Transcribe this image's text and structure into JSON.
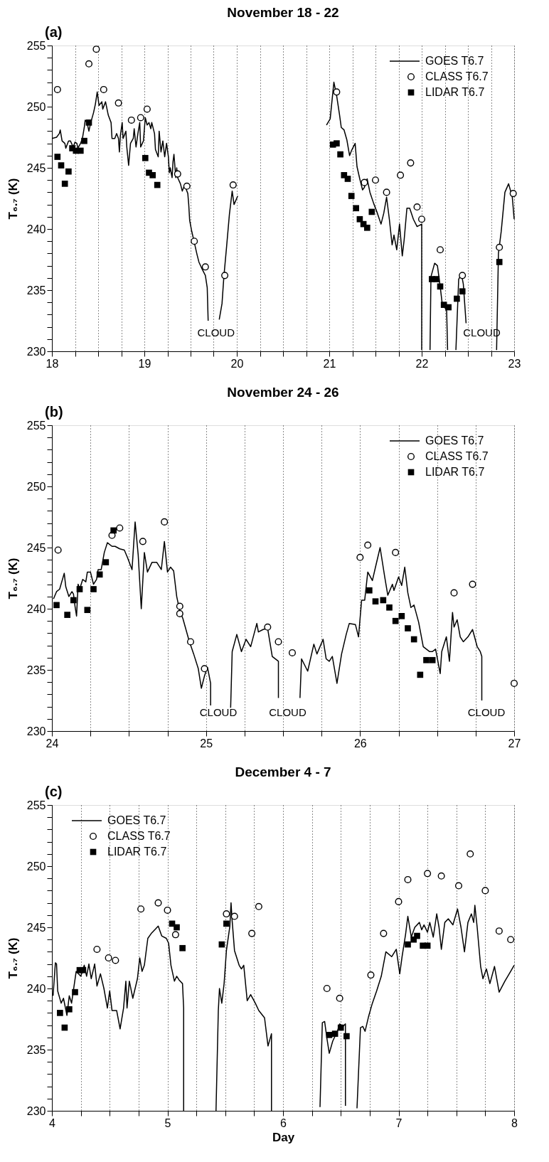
{
  "chart_data": [
    {
      "type": "line",
      "title": "November 18 - 22",
      "ylabel": "T₆.₇ (K)",
      "annotations": [
        "(a)",
        "CLOUD",
        "CLOUD"
      ],
      "xlim": [
        18,
        23
      ],
      "ylim": [
        230,
        255
      ],
      "xticks": [
        18,
        {
          "value": 18.25,
          "label": null
        },
        {
          "value": 18.5,
          "label": null
        },
        {
          "value": 18.75,
          "label": null
        },
        19,
        {
          "value": 19.25,
          "label": null
        },
        {
          "value": 19.5,
          "label": null
        },
        {
          "value": 19.75,
          "label": null
        },
        20,
        {
          "value": 20.25,
          "label": null
        },
        {
          "value": 20.5,
          "label": null
        },
        {
          "value": 20.75,
          "label": null
        },
        21,
        {
          "value": 21.25,
          "label": null
        },
        {
          "value": 21.5,
          "label": null
        },
        {
          "value": 21.75,
          "label": null
        },
        22,
        {
          "value": 22.25,
          "label": null
        },
        {
          "value": 22.5,
          "label": null
        },
        {
          "value": 22.75,
          "label": null
        },
        23
      ],
      "yticks": [
        230,
        {
          "value": 231,
          "label": null
        },
        {
          "value": 232,
          "label": null
        },
        {
          "value": 233,
          "label": null
        },
        {
          "value": 234,
          "label": null
        },
        235,
        {
          "value": 236,
          "label": null
        },
        {
          "value": 237,
          "label": null
        },
        {
          "value": 238,
          "label": null
        },
        {
          "value": 239,
          "label": null
        },
        240,
        {
          "value": 241,
          "label": null
        },
        {
          "value": 242,
          "label": null
        },
        {
          "value": 243,
          "label": null
        },
        {
          "value": 244,
          "label": null
        },
        245,
        {
          "value": 246,
          "label": null
        },
        {
          "value": 247,
          "label": null
        },
        {
          "value": 248,
          "label": null
        },
        {
          "value": 249,
          "label": null
        },
        250,
        {
          "value": 251,
          "label": null
        },
        {
          "value": 252,
          "label": null
        },
        {
          "value": 253,
          "label": null
        },
        {
          "value": 254,
          "label": null
        },
        255
      ],
      "grid": "x",
      "legend": "top right",
      "series": [
        {
          "name": "GOES T6.7",
          "line_style": "solid",
          "color": "#000000",
          "x": [
            18.0,
            18.05,
            18.08,
            18.09,
            18.11,
            18.14,
            18.15,
            18.18,
            18.2,
            18.23,
            18.25,
            18.27,
            18.28,
            18.31,
            18.33,
            18.35,
            18.36,
            18.38,
            18.4,
            18.42,
            18.45,
            18.47,
            18.49,
            18.51,
            18.54,
            18.55,
            18.58,
            18.61,
            18.64,
            18.65,
            18.68,
            18.7,
            18.72,
            18.73,
            18.74,
            18.76,
            18.77,
            18.8,
            18.81,
            18.83,
            18.85,
            18.88,
            18.89,
            18.91,
            18.93,
            18.95,
            18.96,
            18.99,
            19.01,
            19.03,
            19.05,
            19.07,
            19.08,
            19.11,
            19.12,
            19.15,
            19.16,
            19.18,
            19.2,
            19.22,
            19.24,
            19.26,
            19.27,
            19.28,
            19.3,
            19.31,
            19.32,
            19.34,
            19.35,
            19.36,
            19.39,
            19.41,
            19.43,
            19.45,
            19.47,
            19.48,
            19.49,
            19.51,
            19.54,
            19.57,
            19.59,
            19.62,
            19.66,
            19.68,
            19.69,
            19.75,
            19.81,
            19.84,
            19.86,
            19.89,
            19.92,
            19.95,
            19.97,
            20.01,
            20.5,
            20.97,
            21.01,
            21.05,
            21.08,
            21.11,
            21.13,
            21.16,
            21.19,
            21.22,
            21.24,
            21.28,
            21.3,
            21.33,
            21.36,
            21.38,
            21.41,
            21.44,
            21.48,
            21.52,
            21.56,
            21.59,
            21.62,
            21.65,
            21.68,
            21.7,
            21.73,
            21.76,
            21.79,
            21.81,
            21.84,
            21.87,
            21.91,
            21.95,
            22.0,
            22.0,
            22.05,
            22.09,
            22.1,
            22.14,
            22.17,
            22.2,
            22.22,
            22.27,
            22.28,
            22.32,
            22.37,
            22.4,
            22.43,
            22.45,
            22.48,
            22.6,
            22.81,
            22.83,
            22.86,
            22.9,
            22.94,
            22.98,
            23.0
          ],
          "values": [
            247.4,
            247.5,
            247.8,
            248.1,
            247.2,
            247.0,
            246.6,
            247.2,
            247.2,
            246.7,
            247.1,
            247.0,
            246.6,
            247.0,
            247.4,
            248.3,
            248.9,
            248.7,
            248.0,
            248.7,
            249.5,
            250.2,
            251.2,
            250.1,
            250.4,
            249.8,
            250.4,
            249.3,
            248.7,
            247.4,
            247.4,
            247.8,
            247.4,
            246.3,
            247.6,
            248.7,
            247.4,
            248.0,
            246.7,
            245.2,
            247.0,
            247.4,
            248.2,
            246.7,
            247.8,
            248.7,
            246.7,
            247.2,
            249.1,
            248.5,
            248.7,
            248.2,
            248.7,
            247.8,
            246.5,
            245.9,
            248.0,
            246.3,
            247.2,
            245.9,
            247.0,
            245.9,
            244.6,
            245.0,
            244.2,
            245.5,
            246.1,
            244.2,
            245.0,
            244.2,
            243.7,
            243.1,
            243.5,
            243.3,
            242.9,
            242.0,
            240.7,
            239.9,
            238.9,
            237.9,
            237.3,
            236.8,
            236.2,
            235.2,
            232.5,
            null,
            232.6,
            233.9,
            236.1,
            238.6,
            241.2,
            243.1,
            242.0,
            242.7,
            null,
            248.5,
            249.0,
            252.0,
            250.9,
            249.4,
            248.3,
            248.1,
            247.3,
            246.0,
            246.4,
            247.0,
            245.1,
            244.1,
            243.2,
            243.4,
            244.1,
            243.0,
            242.1,
            241.3,
            240.4,
            241.3,
            242.6,
            240.8,
            238.7,
            239.5,
            238.3,
            240.4,
            237.8,
            239.1,
            241.7,
            241.7,
            240.8,
            240.2,
            240.4,
            230.1,
            null,
            230.1,
            236.1,
            237.2,
            237.0,
            235.3,
            234.0,
            233.3,
            230.1,
            null,
            230.1,
            235.9,
            236.3,
            235.5,
            232.3,
            null,
            230.1,
            238.0,
            239.8,
            243.0,
            243.7,
            242.6,
            240.8
          ]
        },
        {
          "name": "CLASS T6.7",
          "type": "scatter",
          "marker": "circle",
          "color": "#000000",
          "x": [
            18.06,
            18.4,
            18.48,
            18.56,
            18.72,
            18.86,
            18.96,
            19.03,
            19.36,
            19.46,
            19.54,
            19.66,
            19.87,
            19.96,
            21.08,
            21.38,
            21.5,
            21.62,
            21.77,
            21.88,
            21.95,
            22.0,
            22.2,
            22.44,
            22.84,
            22.99
          ],
          "values": [
            251.4,
            253.5,
            254.7,
            251.4,
            250.3,
            248.9,
            249.1,
            249.8,
            244.5,
            243.5,
            239.0,
            236.9,
            236.2,
            243.6,
            251.2,
            243.8,
            244.0,
            243.0,
            244.4,
            245.4,
            241.8,
            240.8,
            238.3,
            236.2,
            238.5,
            242.9
          ]
        },
        {
          "name": "LIDAR T6.7",
          "type": "scatter",
          "marker": "square",
          "color": "#000000",
          "x": [
            18.06,
            18.1,
            18.14,
            18.18,
            18.22,
            18.26,
            18.31,
            18.35,
            18.4,
            19.01,
            19.05,
            19.09,
            19.14,
            21.04,
            21.08,
            21.12,
            21.16,
            21.2,
            21.24,
            21.29,
            21.33,
            21.37,
            21.41,
            21.46,
            22.11,
            22.16,
            22.2,
            22.24,
            22.29,
            22.38,
            22.44,
            22.84
          ],
          "values": [
            245.9,
            245.2,
            243.7,
            244.7,
            246.6,
            246.4,
            246.4,
            247.2,
            248.7,
            245.8,
            244.6,
            244.4,
            243.6,
            246.9,
            247.0,
            246.1,
            244.4,
            244.1,
            242.7,
            241.7,
            240.8,
            240.4,
            240.1,
            241.4,
            235.9,
            235.9,
            235.3,
            233.8,
            233.6,
            234.3,
            234.9,
            237.3
          ]
        }
      ]
    },
    {
      "type": "line",
      "title": "November 24 - 26",
      "ylabel": "T₆.₇ (K)",
      "annotations": [
        "(b)",
        "CLOUD",
        "CLOUD",
        "CLOUD"
      ],
      "xlim": [
        24,
        27
      ],
      "ylim": [
        230,
        255
      ],
      "xticks": [
        24,
        {
          "value": 24.25,
          "label": null
        },
        {
          "value": 24.5,
          "label": null
        },
        {
          "value": 24.75,
          "label": null
        },
        25,
        {
          "value": 25.25,
          "label": null
        },
        {
          "value": 25.5,
          "label": null
        },
        {
          "value": 25.75,
          "label": null
        },
        26,
        {
          "value": 26.25,
          "label": null
        },
        {
          "value": 26.5,
          "label": null
        },
        {
          "value": 26.75,
          "label": null
        },
        27
      ],
      "yticks": [
        230,
        {
          "value": 231,
          "label": null
        },
        {
          "value": 232,
          "label": null
        },
        {
          "value": 233,
          "label": null
        },
        {
          "value": 234,
          "label": null
        },
        235,
        {
          "value": 236,
          "label": null
        },
        {
          "value": 237,
          "label": null
        },
        {
          "value": 238,
          "label": null
        },
        {
          "value": 239,
          "label": null
        },
        240,
        {
          "value": 241,
          "label": null
        },
        {
          "value": 242,
          "label": null
        },
        {
          "value": 243,
          "label": null
        },
        {
          "value": 244,
          "label": null
        },
        245,
        {
          "value": 246,
          "label": null
        },
        {
          "value": 247,
          "label": null
        },
        {
          "value": 248,
          "label": null
        },
        {
          "value": 249,
          "label": null
        },
        250,
        {
          "value": 251,
          "label": null
        },
        {
          "value": 252,
          "label": null
        },
        {
          "value": 253,
          "label": null
        },
        {
          "value": 254,
          "label": null
        },
        255
      ],
      "grid": "x",
      "legend": "top right",
      "series": [
        {
          "name": "GOES T6.7",
          "line_style": "solid",
          "color": "#000000",
          "x": [
            24.01,
            24.03,
            24.05,
            24.08,
            24.09,
            24.11,
            24.13,
            24.14,
            24.15,
            24.16,
            24.17,
            24.18,
            24.2,
            24.22,
            24.23,
            24.25,
            24.27,
            24.29,
            24.3,
            24.32,
            24.34,
            24.36,
            24.39,
            24.41,
            24.44,
            24.47,
            24.49,
            24.52,
            24.54,
            24.56,
            24.58,
            24.6,
            24.62,
            24.65,
            24.68,
            24.71,
            24.73,
            24.75,
            24.77,
            24.79,
            24.81,
            24.83,
            24.85,
            24.89,
            24.92,
            24.95,
            24.97,
            24.99,
            25.01,
            25.03,
            25.03,
            25.1,
            25.16,
            25.17,
            25.2,
            25.23,
            25.26,
            25.29,
            25.33,
            25.34,
            25.37,
            25.4,
            25.43,
            25.47,
            25.47,
            25.54,
            25.61,
            25.62,
            25.66,
            25.7,
            25.72,
            25.76,
            25.78,
            25.8,
            25.82,
            25.85,
            25.88,
            25.91,
            25.93,
            25.97,
            25.99,
            26.01,
            26.03,
            26.05,
            26.08,
            26.1,
            26.13,
            26.16,
            26.18,
            26.21,
            26.22,
            26.25,
            26.27,
            26.29,
            26.31,
            26.33,
            26.35,
            26.38,
            26.41,
            26.45,
            26.47,
            26.49,
            26.52,
            26.53,
            26.56,
            26.58,
            26.6,
            26.61,
            26.63,
            26.65,
            26.67,
            26.7,
            26.73,
            26.76,
            26.78,
            26.79,
            26.79
          ],
          "values": [
            240.8,
            241.4,
            241.6,
            242.9,
            241.8,
            241.0,
            241.4,
            241.2,
            240.2,
            239.4,
            242.0,
            241.6,
            242.4,
            242.2,
            243.0,
            243.0,
            242.0,
            242.4,
            243.2,
            243.2,
            244.6,
            245.4,
            245.1,
            245.1,
            244.9,
            244.8,
            244.2,
            243.2,
            247.1,
            244.4,
            240.0,
            244.6,
            243.0,
            243.8,
            243.8,
            243.2,
            245.5,
            243.0,
            243.4,
            243.1,
            241.0,
            239.8,
            239.2,
            237.4,
            236.3,
            235.1,
            233.5,
            234.5,
            235.2,
            233.9,
            232.1,
            null,
            231.9,
            236.5,
            237.9,
            236.5,
            237.5,
            236.9,
            238.8,
            238.1,
            238.3,
            238.4,
            236.1,
            235.7,
            232.7,
            null,
            232.7,
            235.9,
            234.9,
            237.1,
            236.3,
            237.5,
            235.9,
            235.7,
            236.1,
            233.9,
            236.3,
            237.9,
            238.8,
            238.7,
            237.7,
            240.7,
            240.7,
            243.0,
            242.3,
            243.4,
            245.0,
            242.6,
            241.1,
            242.0,
            241.5,
            242.6,
            241.9,
            243.4,
            241.3,
            240.1,
            240.3,
            238.9,
            236.9,
            236.5,
            236.5,
            236.7,
            234.7,
            236.5,
            237.7,
            235.7,
            239.7,
            238.5,
            239.1,
            237.7,
            237.3,
            237.7,
            238.3,
            236.9,
            236.5,
            236.1,
            232.5
          ]
        },
        {
          "name": "CLASS T6.7",
          "type": "scatter",
          "marker": "circle",
          "color": "#000000",
          "x": [
            24.04,
            24.39,
            24.44,
            24.59,
            24.73,
            24.83,
            24.83,
            24.9,
            24.99,
            25.4,
            25.47,
            25.56,
            26.0,
            26.05,
            26.23,
            26.61,
            26.73,
            27.0
          ],
          "values": [
            244.8,
            246.0,
            246.6,
            245.5,
            247.1,
            240.2,
            239.6,
            237.3,
            235.1,
            238.5,
            237.3,
            236.4,
            244.2,
            245.2,
            244.6,
            241.3,
            242.0,
            233.9
          ]
        },
        {
          "name": "LIDAR T6.7",
          "type": "scatter",
          "marker": "square",
          "color": "#000000",
          "x": [
            24.03,
            24.1,
            24.14,
            24.18,
            24.23,
            24.27,
            24.31,
            24.35,
            24.4,
            26.06,
            26.1,
            26.15,
            26.19,
            26.23,
            26.27,
            26.31,
            26.35,
            26.39,
            26.43,
            26.47
          ],
          "values": [
            240.3,
            239.5,
            240.7,
            241.6,
            239.9,
            241.6,
            242.8,
            243.8,
            246.4,
            241.5,
            240.6,
            240.7,
            240.1,
            239.0,
            239.4,
            238.4,
            237.5,
            234.6,
            235.8,
            235.8
          ]
        }
      ]
    },
    {
      "type": "line",
      "title": "December 4 - 7",
      "xlabel": "Day",
      "ylabel": "T₆.₇ (K)",
      "annotations": [
        "(c)"
      ],
      "xlim": [
        4,
        8
      ],
      "ylim": [
        230,
        255
      ],
      "xticks": [
        4,
        {
          "value": 4.25,
          "label": null
        },
        {
          "value": 4.5,
          "label": null
        },
        {
          "value": 4.75,
          "label": null
        },
        5,
        {
          "value": 5.25,
          "label": null
        },
        {
          "value": 5.5,
          "label": null
        },
        {
          "value": 5.75,
          "label": null
        },
        6,
        {
          "value": 6.25,
          "label": null
        },
        {
          "value": 6.5,
          "label": null
        },
        {
          "value": 6.75,
          "label": null
        },
        7,
        {
          "value": 7.25,
          "label": null
        },
        {
          "value": 7.5,
          "label": null
        },
        {
          "value": 7.75,
          "label": null
        },
        8
      ],
      "yticks": [
        230,
        {
          "value": 231,
          "label": null
        },
        {
          "value": 232,
          "label": null
        },
        {
          "value": 233,
          "label": null
        },
        {
          "value": 234,
          "label": null
        },
        235,
        {
          "value": 236,
          "label": null
        },
        {
          "value": 237,
          "label": null
        },
        {
          "value": 238,
          "label": null
        },
        {
          "value": 239,
          "label": null
        },
        240,
        {
          "value": 241,
          "label": null
        },
        {
          "value": 242,
          "label": null
        },
        {
          "value": 243,
          "label": null
        },
        {
          "value": 244,
          "label": null
        },
        245,
        {
          "value": 246,
          "label": null
        },
        {
          "value": 247,
          "label": null
        },
        {
          "value": 248,
          "label": null
        },
        {
          "value": 249,
          "label": null
        },
        250,
        {
          "value": 251,
          "label": null
        },
        {
          "value": 252,
          "label": null
        },
        {
          "value": 253,
          "label": null
        },
        {
          "value": 254,
          "label": null
        },
        255
      ],
      "grid": "x",
      "legend": "top left",
      "series": [
        {
          "name": "GOES T6.7",
          "line_style": "solid",
          "color": "#000000",
          "x": [
            4.01,
            4.03,
            4.04,
            4.05,
            4.08,
            4.1,
            4.13,
            4.15,
            4.17,
            4.21,
            4.25,
            4.28,
            4.3,
            4.32,
            4.34,
            4.37,
            4.39,
            4.42,
            4.45,
            4.48,
            4.5,
            4.52,
            4.56,
            4.59,
            4.62,
            4.64,
            4.65,
            4.67,
            4.7,
            4.72,
            4.74,
            4.76,
            4.78,
            4.8,
            4.83,
            4.86,
            4.9,
            4.92,
            4.95,
            4.99,
            5.01,
            5.03,
            5.06,
            5.08,
            5.1,
            5.13,
            5.14,
            5.14,
            5.3,
            5.42,
            5.44,
            5.45,
            5.47,
            5.49,
            5.51,
            5.54,
            5.55,
            5.56,
            5.58,
            5.62,
            5.64,
            5.66,
            5.69,
            5.72,
            5.76,
            5.79,
            5.84,
            5.87,
            5.9,
            5.9,
            6.1,
            6.32,
            6.34,
            6.36,
            6.38,
            6.4,
            6.43,
            6.47,
            6.49,
            6.52,
            6.54,
            6.54,
            6.6,
            6.64,
            6.67,
            6.69,
            6.71,
            6.74,
            6.77,
            6.81,
            6.85,
            6.89,
            6.94,
            6.98,
            7.01,
            7.03,
            7.06,
            7.08,
            7.11,
            7.14,
            7.18,
            7.2,
            7.22,
            7.25,
            7.27,
            7.3,
            7.33,
            7.35,
            7.37,
            7.4,
            7.43,
            7.47,
            7.51,
            7.54,
            7.57,
            7.6,
            7.63,
            7.65,
            7.66,
            7.68,
            7.71,
            7.73,
            7.76,
            7.79,
            7.83,
            7.87,
            7.92,
            7.97,
            8.0
          ],
          "values": [
            239.4,
            242.1,
            242.0,
            239.8,
            238.8,
            239.2,
            237.8,
            239.4,
            238.8,
            241.4,
            241.0,
            241.9,
            241.0,
            242.0,
            240.8,
            242.0,
            240.2,
            241.2,
            240.0,
            238.4,
            239.8,
            238.2,
            238.2,
            236.7,
            238.4,
            240.6,
            238.4,
            240.6,
            239.2,
            240.0,
            240.8,
            242.5,
            241.4,
            241.9,
            244.1,
            244.5,
            244.9,
            245.1,
            244.3,
            244.1,
            243.7,
            241.9,
            240.6,
            241.0,
            240.7,
            240.4,
            238.4,
            230.0,
            null,
            230.0,
            238.2,
            240.0,
            238.8,
            240.4,
            243.1,
            245.1,
            247.0,
            245.5,
            243.1,
            241.9,
            241.6,
            241.9,
            239.0,
            239.5,
            238.8,
            238.2,
            237.6,
            235.3,
            236.3,
            230.0,
            null,
            230.3,
            237.2,
            237.3,
            235.9,
            234.7,
            235.7,
            236.5,
            237.1,
            236.9,
            237.1,
            230.4,
            null,
            230.2,
            236.8,
            236.9,
            236.5,
            237.7,
            238.7,
            239.8,
            241.0,
            243.0,
            242.6,
            243.2,
            241.2,
            242.6,
            244.4,
            245.9,
            244.2,
            245.0,
            245.4,
            244.8,
            245.2,
            244.6,
            245.4,
            244.2,
            246.1,
            245.0,
            243.2,
            245.4,
            245.7,
            245.2,
            246.5,
            245.0,
            243.0,
            245.4,
            246.1,
            245.4,
            246.8,
            245.0,
            241.8,
            240.8,
            241.6,
            240.4,
            241.8,
            239.7,
            240.6,
            241.4,
            241.9
          ]
        },
        {
          "name": "CLASS T6.7",
          "type": "scatter",
          "marker": "circle",
          "color": "#000000",
          "x": [
            4.39,
            4.49,
            4.55,
            4.77,
            4.92,
            5.0,
            5.07,
            5.51,
            5.58,
            5.73,
            5.79,
            6.38,
            6.49,
            6.76,
            6.87,
            7.0,
            7.08,
            7.25,
            7.37,
            7.52,
            7.62,
            7.75,
            7.87,
            7.97
          ],
          "values": [
            243.2,
            242.5,
            242.3,
            246.5,
            247.0,
            246.4,
            244.4,
            246.1,
            245.9,
            244.5,
            246.7,
            240.0,
            239.2,
            241.1,
            244.5,
            247.1,
            248.9,
            249.4,
            249.2,
            248.4,
            251.0,
            248.0,
            244.7,
            244.0
          ]
        },
        {
          "name": "LIDAR T6.7",
          "type": "scatter",
          "marker": "square",
          "color": "#000000",
          "x": [
            4.07,
            4.11,
            4.15,
            4.2,
            4.24,
            4.27,
            5.04,
            5.08,
            5.13,
            5.47,
            5.51,
            6.4,
            6.45,
            6.5,
            6.55,
            7.08,
            7.13,
            7.16,
            7.21,
            7.25
          ],
          "values": [
            238.0,
            236.8,
            238.3,
            239.7,
            241.5,
            241.5,
            245.3,
            245.0,
            243.3,
            243.6,
            245.3,
            236.2,
            236.3,
            236.8,
            236.1,
            243.6,
            244.0,
            244.3,
            243.5,
            243.5
          ]
        }
      ]
    }
  ]
}
